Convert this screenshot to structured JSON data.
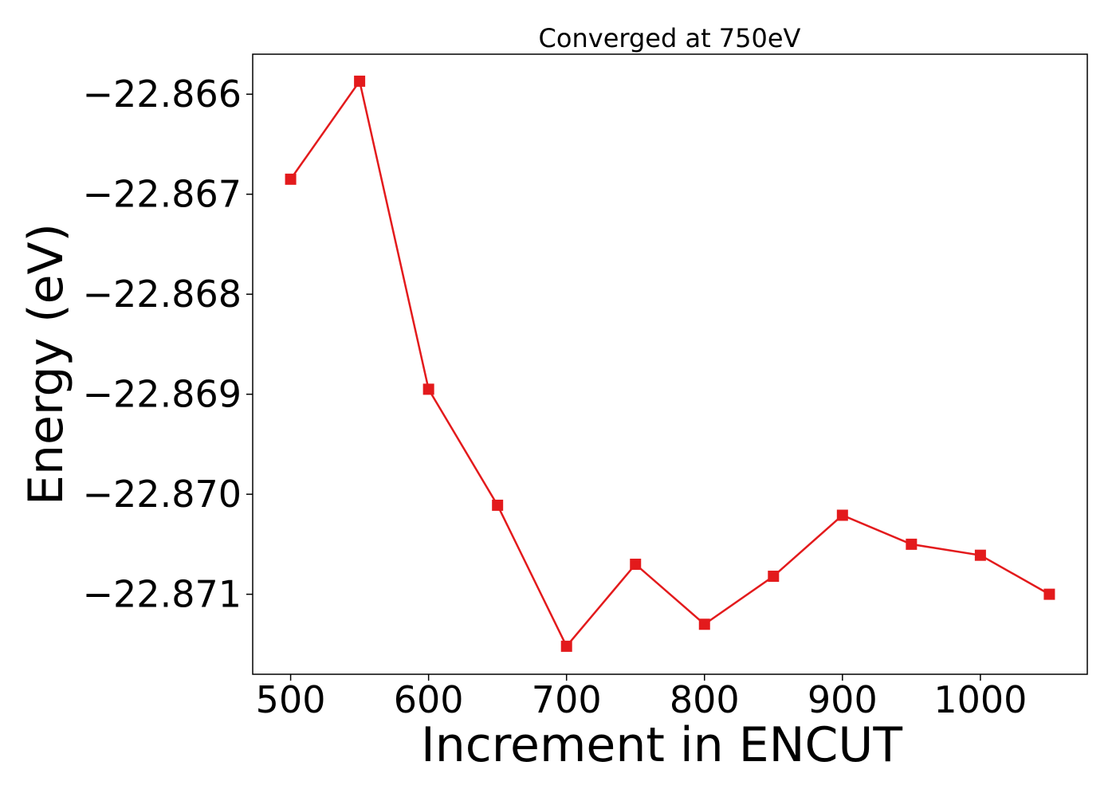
{
  "chart_data": {
    "type": "line",
    "title": "Converged at 750eV",
    "xlabel": "Increment in ENCUT",
    "ylabel": "Energy (eV)",
    "xlim": [
      472.5,
      1077.5
    ],
    "ylim": [
      -22.8718,
      -22.8656
    ],
    "xticks": [
      500,
      600,
      700,
      800,
      900,
      1000
    ],
    "xtick_labels": [
      "500",
      "600",
      "700",
      "800",
      "900",
      "1000"
    ],
    "yticks": [
      -22.866,
      -22.867,
      -22.868,
      -22.869,
      -22.87,
      -22.871
    ],
    "ytick_labels": [
      "−22.866",
      "−22.867",
      "−22.868",
      "−22.869",
      "−22.870",
      "−22.871"
    ],
    "grid": false,
    "series": [
      {
        "color": "#e31a1c",
        "marker": "square",
        "x": [
          500,
          550,
          600,
          650,
          700,
          750,
          800,
          850,
          900,
          950,
          1000,
          1050
        ],
        "y": [
          -22.86685,
          -22.86587,
          -22.86895,
          -22.87011,
          -22.87152,
          -22.8707,
          -22.8713,
          -22.87082,
          -22.87021,
          -22.8705,
          -22.87061,
          -22.871
        ]
      }
    ]
  }
}
